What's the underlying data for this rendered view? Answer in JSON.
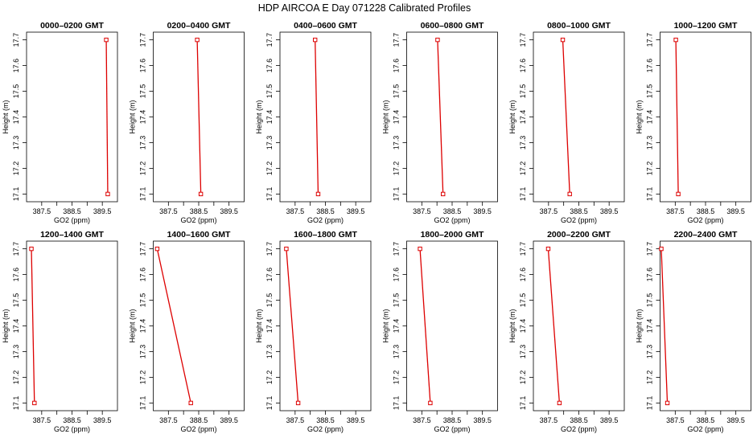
{
  "figure": {
    "title": "HDP  AIRCOA E  Day 071228  Calibrated Profiles",
    "xlabel": "GO2 (ppm)",
    "ylabel": "Height (m)",
    "series_color": "#dd0000"
  },
  "chart_data": [
    {
      "type": "line",
      "title": "0000–0200 GMT",
      "xlim": [
        387.0,
        390.0
      ],
      "ylim": [
        17.07,
        17.73
      ],
      "x": [
        389.63,
        389.68
      ],
      "y": [
        17.7,
        17.1
      ],
      "xticks": [
        "387.5",
        "388.5",
        "389.5"
      ],
      "yticks": [
        "17.1",
        "17.2",
        "17.3",
        "17.4",
        "17.5",
        "17.6",
        "17.7"
      ],
      "xlabel": "GO2 (ppm)",
      "ylabel": "Height (m)"
    },
    {
      "type": "line",
      "title": "0200–0400 GMT",
      "xlim": [
        387.0,
        390.0
      ],
      "ylim": [
        17.07,
        17.73
      ],
      "x": [
        388.45,
        388.57
      ],
      "y": [
        17.7,
        17.1
      ],
      "xticks": [
        "387.5",
        "388.5",
        "389.5"
      ],
      "yticks": [
        "17.1",
        "17.2",
        "17.3",
        "17.4",
        "17.5",
        "17.6",
        "17.7"
      ],
      "xlabel": "GO2 (ppm)",
      "ylabel": "Height (m)"
    },
    {
      "type": "line",
      "title": "0400–0600 GMT",
      "xlim": [
        387.0,
        390.0
      ],
      "ylim": [
        17.07,
        17.73
      ],
      "x": [
        388.16,
        388.26
      ],
      "y": [
        17.7,
        17.1
      ],
      "xticks": [
        "387.5",
        "388.5",
        "389.5"
      ],
      "yticks": [
        "17.1",
        "17.2",
        "17.3",
        "17.4",
        "17.5",
        "17.6",
        "17.7"
      ],
      "xlabel": "GO2 (ppm)",
      "ylabel": "Height (m)"
    },
    {
      "type": "line",
      "title": "0600–0800 GMT",
      "xlim": [
        387.0,
        390.0
      ],
      "ylim": [
        17.07,
        17.73
      ],
      "x": [
        388.02,
        388.2
      ],
      "y": [
        17.7,
        17.1
      ],
      "xticks": [
        "387.5",
        "388.5",
        "389.5"
      ],
      "yticks": [
        "17.1",
        "17.2",
        "17.3",
        "17.4",
        "17.5",
        "17.6",
        "17.7"
      ],
      "xlabel": "GO2 (ppm)",
      "ylabel": "Height (m)"
    },
    {
      "type": "line",
      "title": "0800–1000 GMT",
      "xlim": [
        387.0,
        390.0
      ],
      "ylim": [
        17.07,
        17.73
      ],
      "x": [
        387.97,
        388.2
      ],
      "y": [
        17.7,
        17.1
      ],
      "xticks": [
        "387.5",
        "388.5",
        "389.5"
      ],
      "yticks": [
        "17.1",
        "17.2",
        "17.3",
        "17.4",
        "17.5",
        "17.6",
        "17.7"
      ],
      "xlabel": "GO2 (ppm)",
      "ylabel": "Height (m)"
    },
    {
      "type": "line",
      "title": "1000–1200 GMT",
      "xlim": [
        387.0,
        390.0
      ],
      "ylim": [
        17.07,
        17.73
      ],
      "x": [
        387.52,
        387.6
      ],
      "y": [
        17.7,
        17.1
      ],
      "xticks": [
        "387.5",
        "388.5",
        "389.5"
      ],
      "yticks": [
        "17.1",
        "17.2",
        "17.3",
        "17.4",
        "17.5",
        "17.6",
        "17.7"
      ],
      "xlabel": "GO2 (ppm)",
      "ylabel": "Height (m)"
    },
    {
      "type": "line",
      "title": "1200–1400 GMT",
      "xlim": [
        387.0,
        390.0
      ],
      "ylim": [
        17.07,
        17.73
      ],
      "x": [
        387.16,
        387.26
      ],
      "y": [
        17.7,
        17.1
      ],
      "xticks": [
        "387.5",
        "388.5",
        "389.5"
      ],
      "yticks": [
        "17.1",
        "17.2",
        "17.3",
        "17.4",
        "17.5",
        "17.6",
        "17.7"
      ],
      "xlabel": "GO2 (ppm)",
      "ylabel": "Height (m)"
    },
    {
      "type": "line",
      "title": "1400–1600 GMT",
      "xlim": [
        387.0,
        390.0
      ],
      "ylim": [
        17.07,
        17.73
      ],
      "x": [
        387.13,
        388.24
      ],
      "y": [
        17.7,
        17.1
      ],
      "xticks": [
        "387.5",
        "388.5",
        "389.5"
      ],
      "yticks": [
        "17.1",
        "17.2",
        "17.3",
        "17.4",
        "17.5",
        "17.6",
        "17.7"
      ],
      "xlabel": "GO2 (ppm)",
      "ylabel": "Height (m)"
    },
    {
      "type": "line",
      "title": "1600–1800 GMT",
      "xlim": [
        387.0,
        390.0
      ],
      "ylim": [
        17.07,
        17.73
      ],
      "x": [
        387.21,
        387.6
      ],
      "y": [
        17.7,
        17.1
      ],
      "xticks": [
        "387.5",
        "388.5",
        "389.5"
      ],
      "yticks": [
        "17.1",
        "17.2",
        "17.3",
        "17.4",
        "17.5",
        "17.6",
        "17.7"
      ],
      "xlabel": "GO2 (ppm)",
      "ylabel": "Height (m)"
    },
    {
      "type": "line",
      "title": "1800–2000 GMT",
      "xlim": [
        387.0,
        390.0
      ],
      "ylim": [
        17.07,
        17.73
      ],
      "x": [
        387.44,
        387.78
      ],
      "y": [
        17.7,
        17.1
      ],
      "xticks": [
        "387.5",
        "388.5",
        "389.5"
      ],
      "yticks": [
        "17.1",
        "17.2",
        "17.3",
        "17.4",
        "17.5",
        "17.6",
        "17.7"
      ],
      "xlabel": "GO2 (ppm)",
      "ylabel": "Height (m)"
    },
    {
      "type": "line",
      "title": "2000–2200 GMT",
      "xlim": [
        387.0,
        390.0
      ],
      "ylim": [
        17.07,
        17.73
      ],
      "x": [
        387.49,
        387.86
      ],
      "y": [
        17.7,
        17.1
      ],
      "xticks": [
        "387.5",
        "388.5",
        "389.5"
      ],
      "yticks": [
        "17.1",
        "17.2",
        "17.3",
        "17.4",
        "17.5",
        "17.6",
        "17.7"
      ],
      "xlabel": "GO2 (ppm)",
      "ylabel": "Height (m)"
    },
    {
      "type": "line",
      "title": "2200–2400 GMT",
      "xlim": [
        387.0,
        390.0
      ],
      "ylim": [
        17.07,
        17.73
      ],
      "x": [
        387.04,
        387.24
      ],
      "y": [
        17.7,
        17.1
      ],
      "xticks": [
        "387.5",
        "388.5",
        "389.5"
      ],
      "yticks": [
        "17.1",
        "17.2",
        "17.3",
        "17.4",
        "17.5",
        "17.6",
        "17.7"
      ],
      "xlabel": "GO2 (ppm)",
      "ylabel": "Height (m)"
    }
  ]
}
